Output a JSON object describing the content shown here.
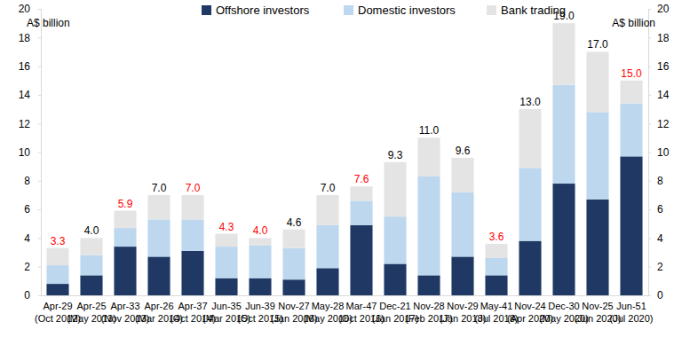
{
  "chart_data": {
    "type": "bar",
    "stacked": true,
    "legend": "top",
    "grid": false,
    "y_label": "A$ billion",
    "y2_label": "A$ billion",
    "categories": [
      "Apr-29 (Oct 2012)",
      "Apr-25 (May 2013)",
      "Apr-33 (Nov 2013)",
      "Apr-26 (Mar 2014)",
      "Apr-37 (Oct 2014)",
      "Jun-35 (Mar 2015)",
      "Jun-39 (Oct 2015)",
      "Nov-27 (Jan 2016)",
      "May-28 (May 2016)",
      "Mar-47 (Oct 2016)",
      "Dec-21 (Jan 2017)",
      "Nov-28 (Feb 2017)",
      "Nov-29 (Jan 2018)",
      "May-41 (Jul 2018)",
      "Nov-24 (Apr 2020)",
      "Dec-30 (May 2020)",
      "Nov-25 (Jun 2020)",
      "Jun-51 (Jul 2020)"
    ],
    "series": [
      {
        "name": "Offshore investors",
        "color": "#1f3864",
        "values": [
          0.8,
          1.4,
          3.4,
          2.7,
          3.1,
          1.2,
          1.2,
          1.1,
          1.9,
          4.9,
          2.2,
          1.4,
          2.7,
          1.4,
          3.8,
          7.8,
          6.7,
          9.7
        ]
      },
      {
        "name": "Domestic investors",
        "color": "#bdd7ee",
        "values": [
          1.3,
          1.4,
          1.3,
          2.6,
          2.2,
          2.2,
          2.3,
          2.2,
          3.0,
          1.7,
          3.3,
          6.9,
          4.5,
          1.2,
          5.1,
          6.9,
          6.1,
          3.7
        ]
      },
      {
        "name": "Bank trading",
        "color": "#e4e4e4",
        "values": [
          1.2,
          1.2,
          1.2,
          1.7,
          1.7,
          0.9,
          0.5,
          1.3,
          2.1,
          1.0,
          3.8,
          2.7,
          2.4,
          1.0,
          4.1,
          4.3,
          4.2,
          1.6
        ]
      }
    ],
    "totals": {
      "values": [
        3.3,
        4.0,
        5.9,
        7.0,
        7.0,
        4.3,
        4.0,
        4.6,
        7.0,
        7.6,
        9.3,
        11.0,
        9.6,
        3.6,
        13.0,
        19.0,
        17.0,
        15.0
      ],
      "value_labels": [
        "3.3",
        "4.0",
        "5.9",
        "7.0",
        "7.0",
        "4.3",
        "4.0",
        "4.6",
        "7.0",
        "7.6",
        "9.3",
        "11.0",
        "9.6",
        "3.6",
        "13.0",
        "19.0",
        "17.0",
        "15.0"
      ],
      "colors": [
        "#ff0000",
        "#000000",
        "#ff0000",
        "#000000",
        "#ff0000",
        "#ff0000",
        "#ff0000",
        "#000000",
        "#000000",
        "#ff0000",
        "#000000",
        "#000000",
        "#000000",
        "#ff0000",
        "#000000",
        "#000000",
        "#000000",
        "#ff0000"
      ]
    },
    "ylim": [
      0,
      20
    ],
    "yticks": [
      0,
      2,
      4,
      6,
      8,
      10,
      12,
      14,
      16,
      18,
      20
    ],
    "y2lim": [
      0,
      20
    ],
    "y2ticks": [
      0,
      2,
      4,
      6,
      8,
      10,
      12,
      14,
      16,
      18,
      20
    ]
  }
}
